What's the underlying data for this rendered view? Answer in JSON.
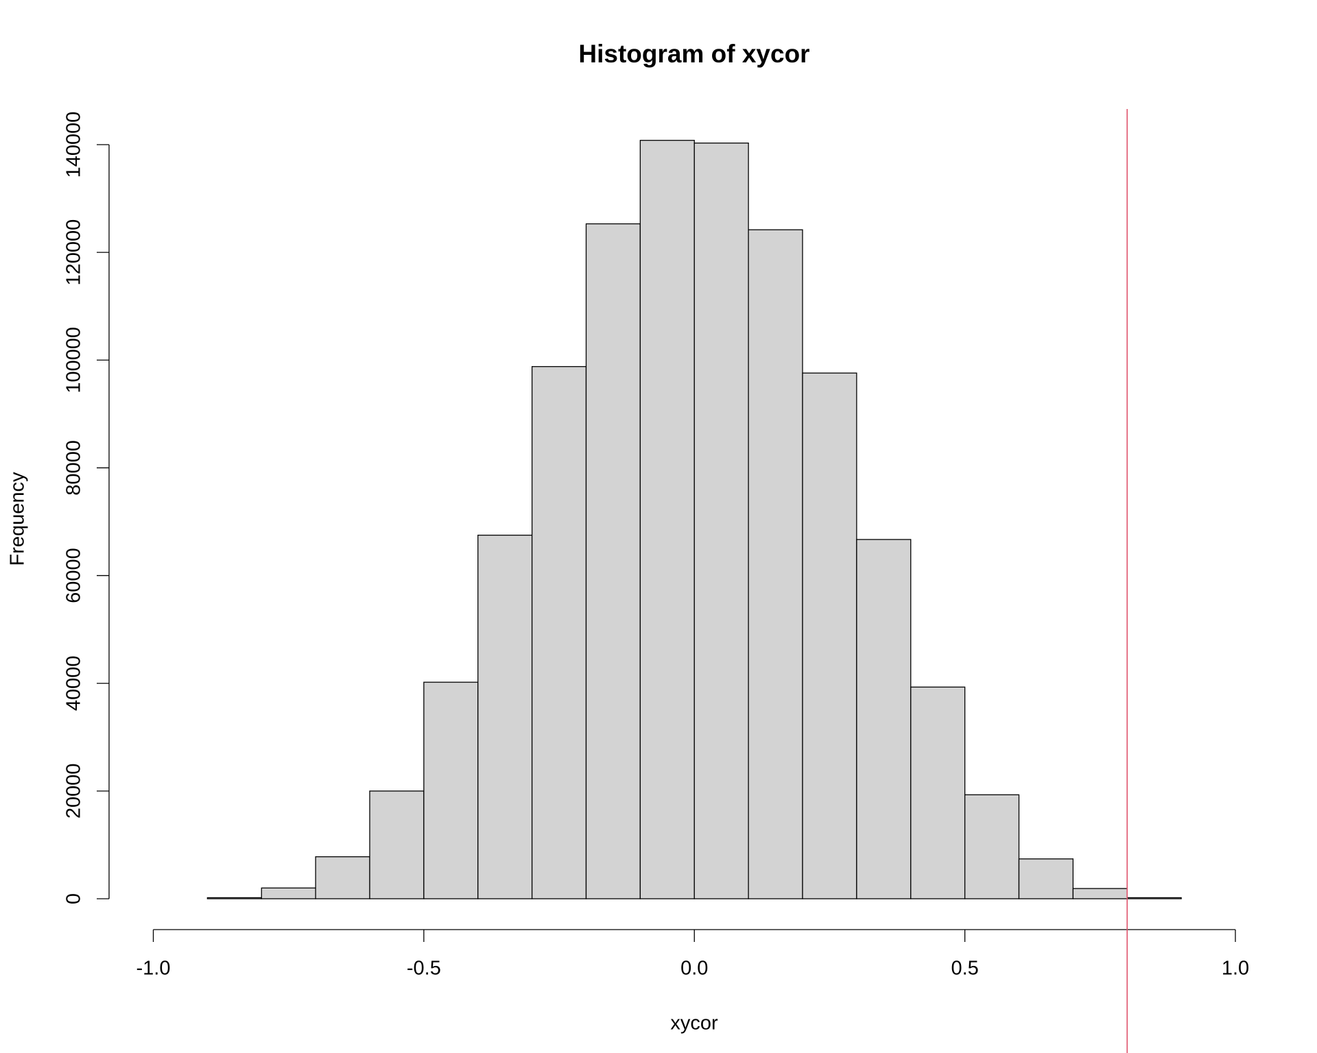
{
  "chart_data": {
    "type": "histogram",
    "title": "Histogram of xycor",
    "x_label": "xycor",
    "y_label": "Frequency",
    "bins": [
      -1.0,
      -0.9,
      -0.8,
      -0.7,
      -0.6,
      -0.5,
      -0.4,
      -0.3,
      -0.2,
      -0.1,
      0.0,
      0.1,
      0.2,
      0.3,
      0.4,
      0.5,
      0.6,
      0.7,
      0.8,
      0.9,
      1.0
    ],
    "values": [
      0,
      200,
      2000,
      7800,
      20000,
      40200,
      67500,
      98800,
      125300,
      140800,
      140300,
      124200,
      97600,
      66700,
      39300,
      19300,
      7400,
      1900,
      200,
      0
    ],
    "color": "#d3d3d3",
    "xlim": [
      -1.0,
      1.0
    ],
    "xticks": [
      {
        "value": -1.0,
        "label": "-1.0"
      },
      -0.5,
      {
        "value": 0.0,
        "label": "0.0"
      },
      0.5,
      {
        "value": 1.0,
        "label": "1.0"
      }
    ],
    "ylim": [
      0,
      140000
    ],
    "yticks": [
      0,
      20000,
      40000,
      60000,
      80000,
      100000,
      120000,
      140000
    ],
    "vline": 0.8,
    "vline_color": "#df536b",
    "grid": false
  }
}
